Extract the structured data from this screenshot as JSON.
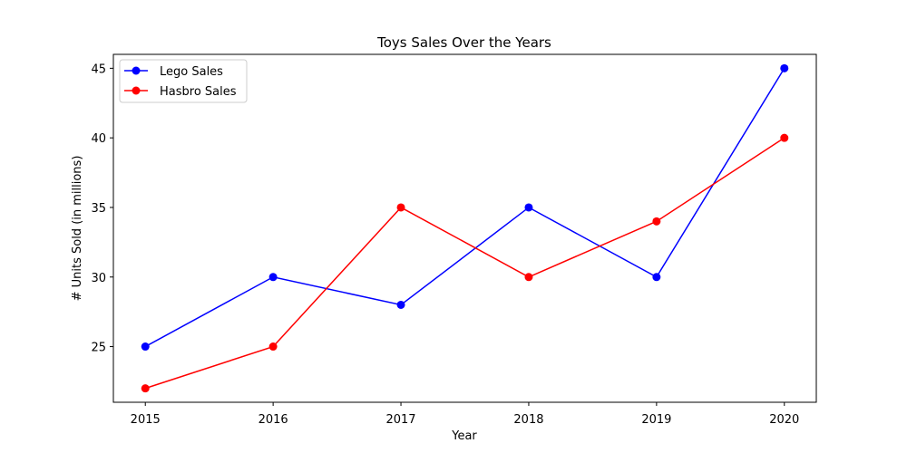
{
  "chart_data": {
    "type": "line",
    "title": "Toys Sales Over the Years",
    "xlabel": "Year",
    "ylabel": "# Units Sold (in millions)",
    "x": [
      2015,
      2016,
      2017,
      2018,
      2019,
      2020
    ],
    "xticks": [
      "2015",
      "2016",
      "2017",
      "2018",
      "2019",
      "2020"
    ],
    "yticks": [
      "25",
      "30",
      "35",
      "40",
      "45"
    ],
    "ylim": [
      21.0,
      46.0
    ],
    "grid": false,
    "legend_placement": "upper-left",
    "series": [
      {
        "name": "Lego Sales",
        "color": "#0000ff",
        "marker": "circle",
        "values": [
          25,
          30,
          28,
          35,
          30,
          45
        ]
      },
      {
        "name": "Hasbro Sales",
        "color": "#ff0000",
        "marker": "circle",
        "values": [
          22,
          25,
          35,
          30,
          34,
          40
        ]
      }
    ]
  }
}
